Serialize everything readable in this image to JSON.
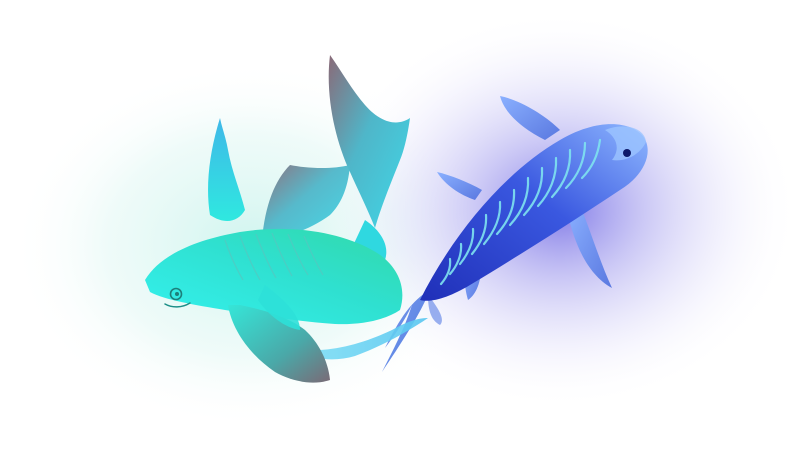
{
  "illustration": {
    "subject": "two-fish-illustration",
    "colors": {
      "background": "#ffffff",
      "glow_teal": "#c8f3ec",
      "glow_violet": "#7b74e6",
      "flyfish_body_light": "#34f2ef",
      "flyfish_body_mid": "#2fd9c9",
      "flyfish_fin_dark": "#8a6a78",
      "flyfish_fin_blue": "#3fb8e8",
      "koi_body_dark": "#1f2fb8",
      "koi_body_light": "#7fb0ff",
      "koi_stripe": "#7fe3f0",
      "koi_fin": "#5e8ae6"
    }
  }
}
